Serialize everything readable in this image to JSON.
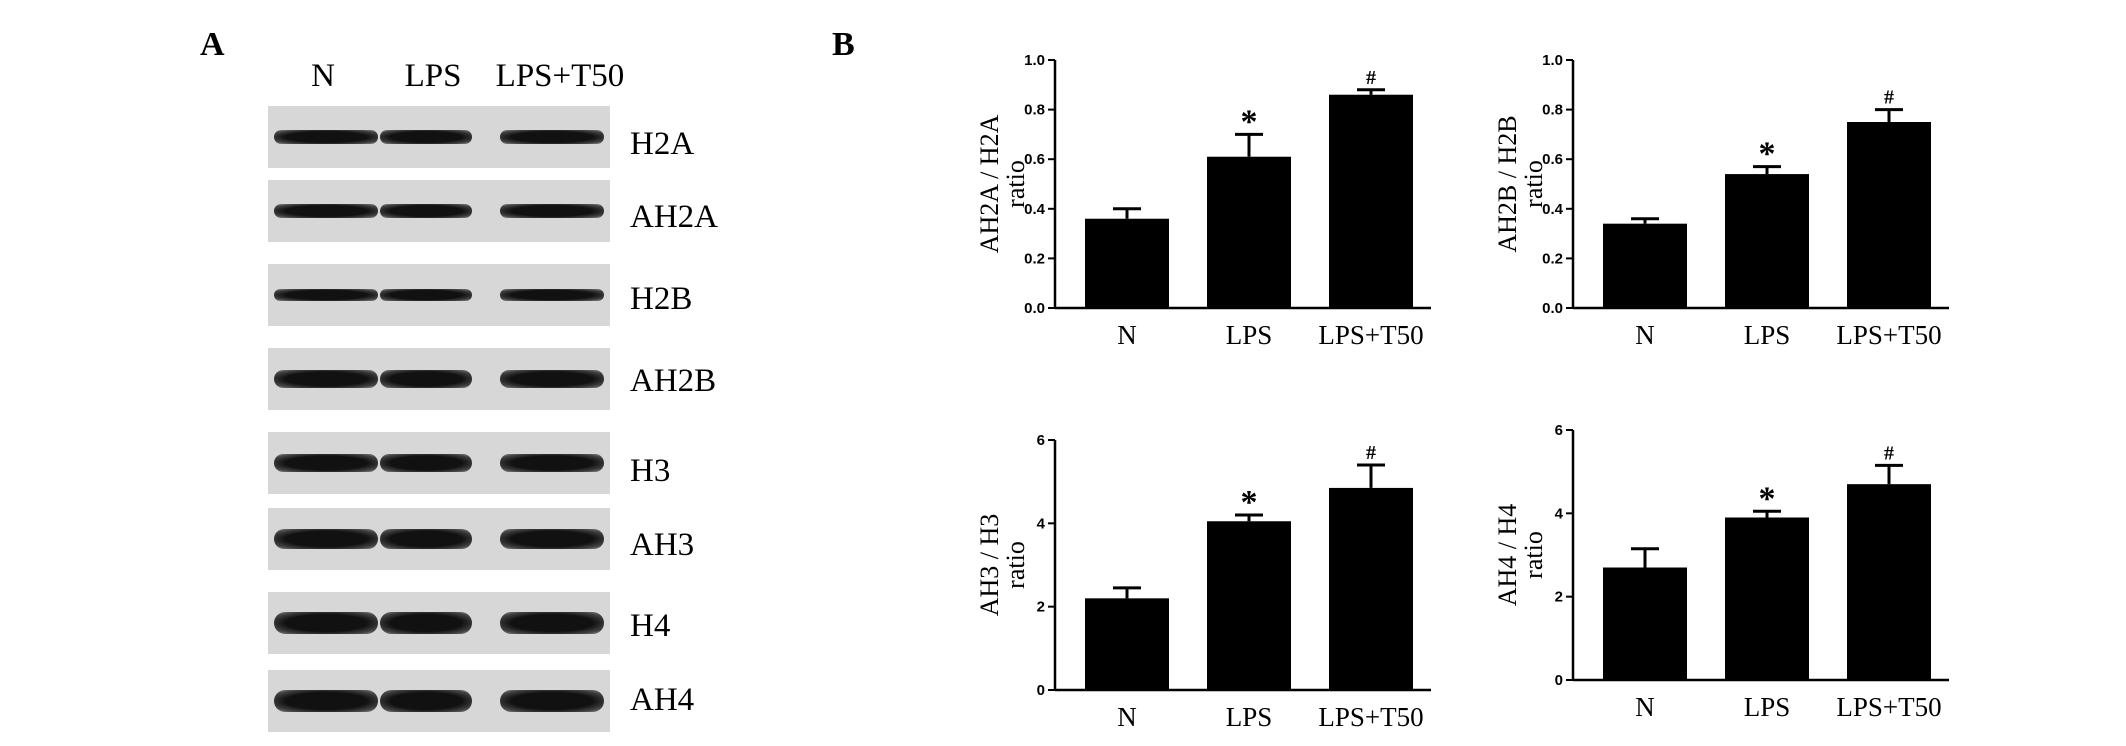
{
  "panels": {
    "a": "A",
    "b": "B"
  },
  "blot": {
    "lanes": [
      "N",
      "LPS",
      "LPS+T50"
    ],
    "rows": [
      {
        "label": "H2A"
      },
      {
        "label": "AH2A"
      },
      {
        "label": "H2B"
      },
      {
        "label": "AH2B"
      },
      {
        "label": "H3"
      },
      {
        "label": "AH3"
      },
      {
        "label": "H4"
      },
      {
        "label": "AH4"
      }
    ]
  },
  "chart_data": [
    {
      "type": "bar",
      "categories": [
        "N",
        "LPS",
        "LPS+T50"
      ],
      "values": [
        0.36,
        0.61,
        0.86
      ],
      "errors": [
        0.04,
        0.09,
        0.02
      ],
      "annotations": [
        "",
        "*",
        "#"
      ],
      "ylabel": "AH2A / H2A",
      "ylabel2": "ratio",
      "ylim": [
        0,
        1.0
      ],
      "yticks": [
        "0.0",
        "0.2",
        "0.4",
        "0.6",
        "0.8",
        "1.0"
      ],
      "color": "#000000"
    },
    {
      "type": "bar",
      "categories": [
        "N",
        "LPS",
        "LPS+T50"
      ],
      "values": [
        0.34,
        0.54,
        0.75
      ],
      "errors": [
        0.02,
        0.03,
        0.05
      ],
      "annotations": [
        "",
        "*",
        "#"
      ],
      "ylabel": "AH2B / H2B",
      "ylabel2": "ratio",
      "ylim": [
        0,
        1.0
      ],
      "yticks": [
        "0.0",
        "0.2",
        "0.4",
        "0.6",
        "0.8",
        "1.0"
      ],
      "color": "#000000"
    },
    {
      "type": "bar",
      "categories": [
        "N",
        "LPS",
        "LPS+T50"
      ],
      "values": [
        2.2,
        4.05,
        4.85
      ],
      "errors": [
        0.25,
        0.15,
        0.55
      ],
      "annotations": [
        "",
        "*",
        "#"
      ],
      "ylabel": "AH3 / H3",
      "ylabel2": "ratio",
      "ylim": [
        0,
        6
      ],
      "yticks": [
        "0",
        "2",
        "4",
        "6"
      ],
      "color": "#000000"
    },
    {
      "type": "bar",
      "categories": [
        "N",
        "LPS",
        "LPS+T50"
      ],
      "values": [
        2.7,
        3.9,
        4.7
      ],
      "errors": [
        0.45,
        0.15,
        0.45
      ],
      "annotations": [
        "",
        "*",
        "#"
      ],
      "ylabel": "AH4 / H4",
      "ylabel2": "ratio",
      "ylim": [
        0,
        6
      ],
      "yticks": [
        "0",
        "2",
        "4",
        "6"
      ],
      "color": "#000000"
    }
  ]
}
